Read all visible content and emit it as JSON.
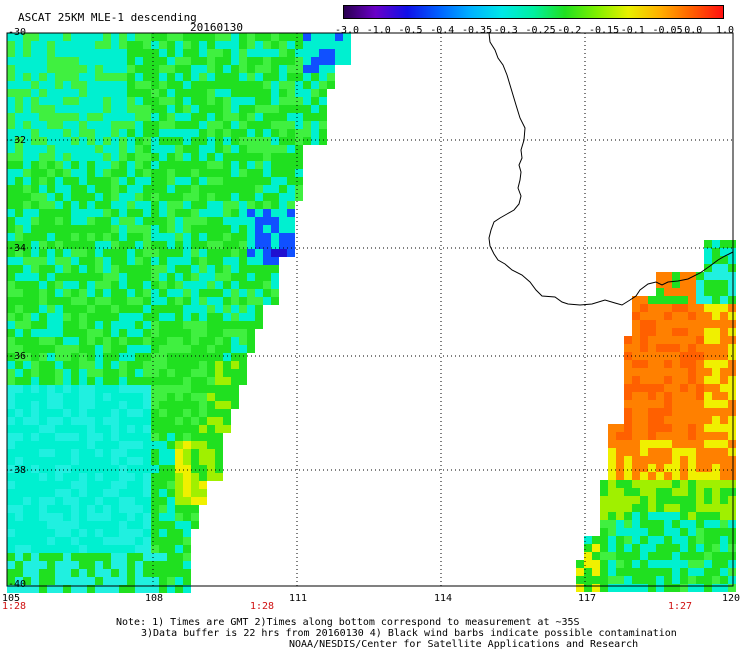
{
  "header": {
    "title": "ASCAT 25KM MLE-1 descending",
    "date": "20160130"
  },
  "colorbar": {
    "ticks": [
      "-3.0",
      "-1.0",
      "-0.5",
      "-0.4",
      "-0.35",
      "-0.3",
      "-0.25",
      "-0.2",
      "-0.15",
      "-0.1",
      "-0.05",
      "0.0",
      "1.0"
    ],
    "colors": [
      "#2a0050",
      "#6a00c8",
      "#1010e8",
      "#0060ff",
      "#00b0ff",
      "#00e8e8",
      "#00f0a0",
      "#20e020",
      "#80f000",
      "#e8f000",
      "#ffb000",
      "#ff6000",
      "#ff1010"
    ]
  },
  "axes": {
    "lat_labels": [
      "-30",
      "-32",
      "-34",
      "-36",
      "-38",
      "-40"
    ],
    "lon_labels": [
      "105",
      "108",
      "111",
      "114",
      "117",
      "120"
    ]
  },
  "time_labels": [
    "1:28",
    "1:28",
    "1:27"
  ],
  "notes": {
    "line1": "Note: 1) Times are GMT 2)Times along bottom correspond to measurement at ~35S",
    "line2": "3)Data buffer is 22 hrs from 20160130 4) Black wind barbs indicate possible contamination",
    "line3": "NOAA/NESDIS/Center for Satellite Applications and Research"
  },
  "palette": {
    "cyan": "#00f0d0",
    "cyan_light": "#20f0e0",
    "green": "#20e020",
    "green_light": "#40f040",
    "yellowgreen": "#a0f000",
    "yellow": "#f0f000",
    "orange": "#ff8000",
    "orange_dark": "#ff6000",
    "blue": "#1050ff",
    "deep_blue": "#2010d0",
    "coast": "#000000"
  }
}
